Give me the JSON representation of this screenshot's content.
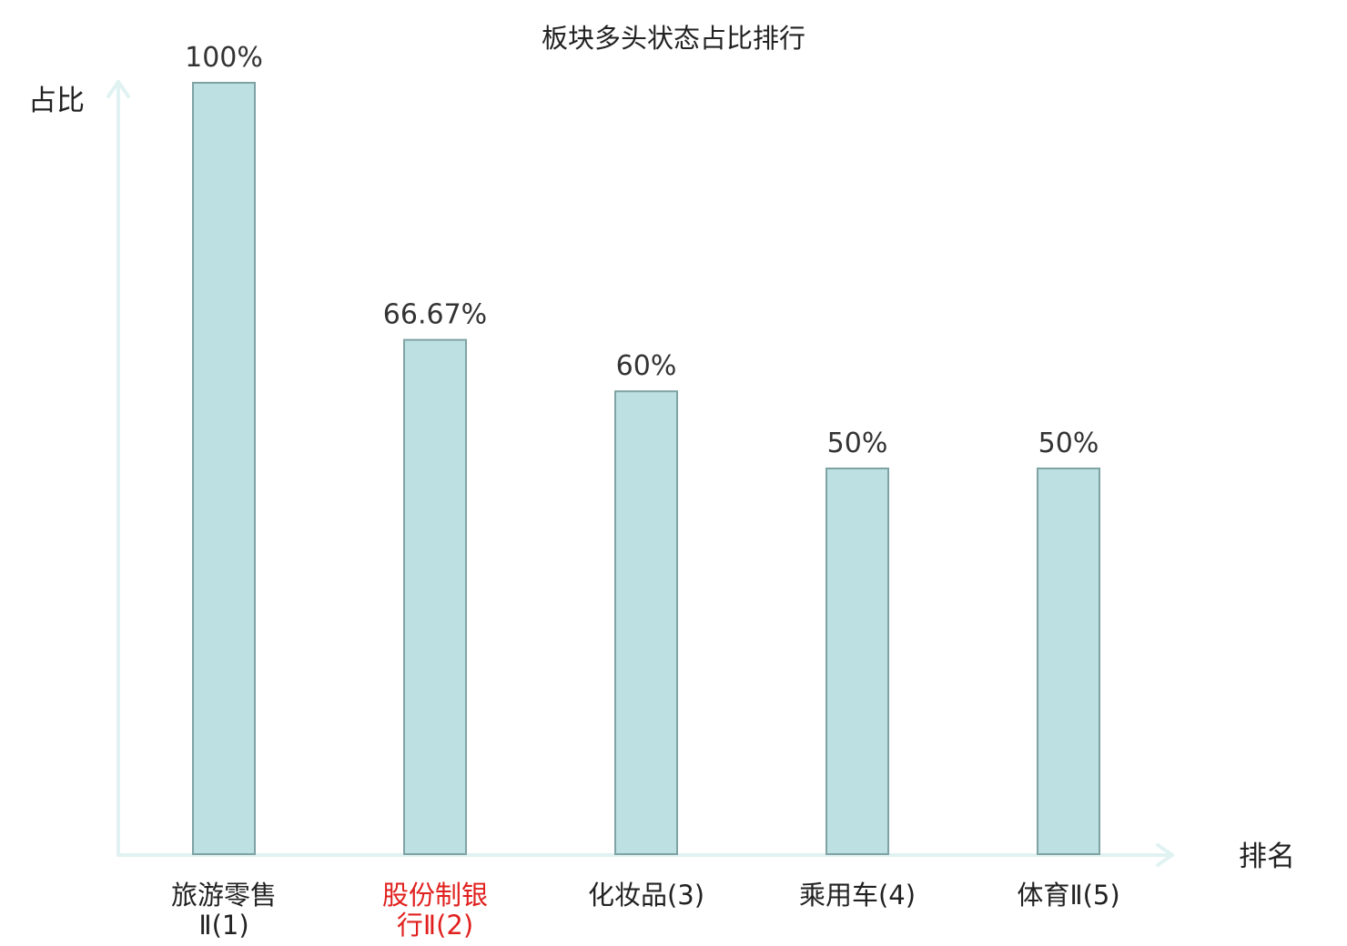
{
  "chart_data": {
    "type": "bar",
    "title": "板块多头状态占比排行",
    "ylabel": "占比",
    "xlabel": "排名",
    "ylim": [
      0,
      100
    ],
    "grid": false,
    "categories": [
      {
        "lines": [
          "旅游零售",
          "Ⅱ(1)"
        ],
        "highlight": false
      },
      {
        "lines": [
          "股份制银",
          "行Ⅱ(2)"
        ],
        "highlight": true
      },
      {
        "lines": [
          "化妆品(3)"
        ],
        "highlight": false
      },
      {
        "lines": [
          "乘用车(4)"
        ],
        "highlight": false
      },
      {
        "lines": [
          "体育Ⅱ(5)"
        ],
        "highlight": false
      }
    ],
    "values": [
      100,
      66.67,
      60,
      50,
      50
    ],
    "value_labels": [
      "100%",
      "66.67%",
      "60%",
      "50%",
      "50%"
    ],
    "colors": {
      "bar_fill": "#bde0e2",
      "bar_stroke": "#7fa3a5",
      "axis": "#e0f2f1",
      "label_normal": "#222222",
      "label_highlight": "#e0201e"
    }
  }
}
